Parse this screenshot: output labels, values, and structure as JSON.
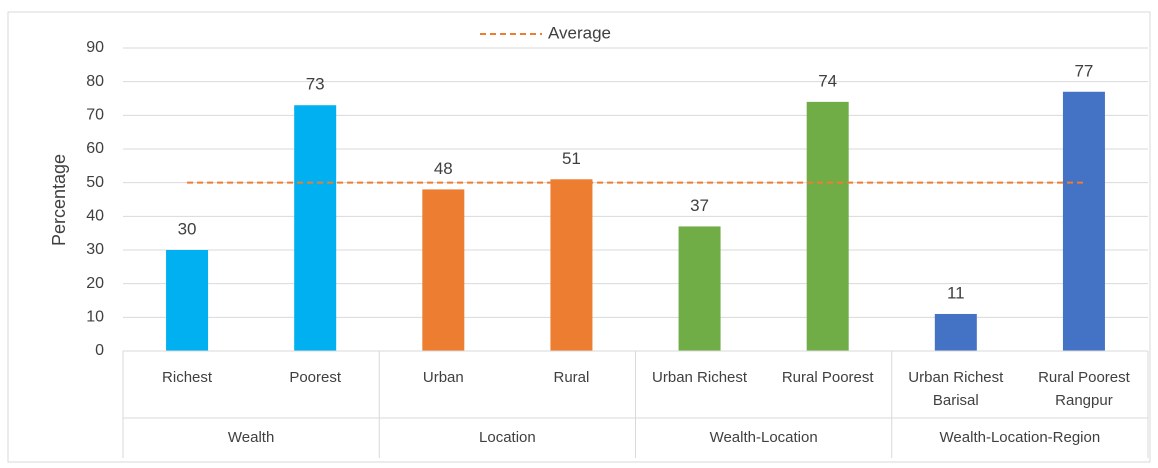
{
  "chart_data": {
    "type": "bar",
    "y_label": "Percentage",
    "ylim": [
      0,
      90
    ],
    "yticks": [
      0,
      10,
      20,
      30,
      40,
      50,
      60,
      70,
      80,
      90
    ],
    "grid": true,
    "groups": [
      {
        "name": "Wealth",
        "color": "#00b0f0",
        "categories": [
          "Richest",
          "Poorest"
        ],
        "values": [
          30,
          73
        ]
      },
      {
        "name": "Location",
        "color": "#ed7d31",
        "categories": [
          "Urban",
          "Rural"
        ],
        "values": [
          48,
          51
        ]
      },
      {
        "name": "Wealth-Location",
        "color": "#70ad47",
        "categories": [
          "Urban Richest",
          "Rural Poorest"
        ],
        "values": [
          37,
          74
        ]
      },
      {
        "name": "Wealth-Location-Region",
        "color": "#4472c4",
        "categories": [
          [
            "Urban Richest",
            "Barisal"
          ],
          [
            "Rural Poorest",
            "Rangpur"
          ]
        ],
        "values": [
          11,
          77
        ]
      }
    ],
    "reference_line": {
      "name": "Average",
      "value": 50,
      "color": "#ed7d31"
    },
    "legend": "top"
  }
}
